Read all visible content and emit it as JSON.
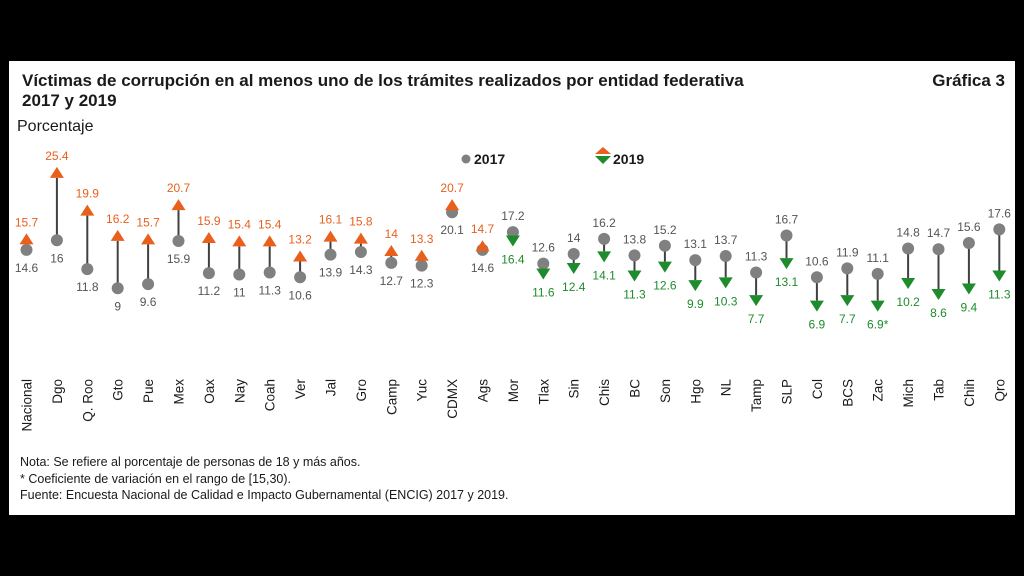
{
  "header": {
    "title_line1": "Víctimas de corrupción en al menos uno de los trámites realizados por entidad federativa",
    "title_line2": "2017 y 2019",
    "figure_label": "Gráfica 3",
    "unit": "Porcentaje"
  },
  "legend": {
    "s2017": "2017",
    "s2019": "2019"
  },
  "colors": {
    "gray": "#808080",
    "orange": "#E8601C",
    "green": "#1E8C2D",
    "connector": "#404040"
  },
  "chart_data": {
    "type": "dumbbell",
    "title": "Víctimas de corrupción en al menos uno de los trámites realizados por entidad federativa 2017 y 2019",
    "ylabel": "Porcentaje",
    "ylim": [
      5,
      26
    ],
    "grid": false,
    "legend_position": "top-center",
    "categories": [
      "Nacional",
      "Dgo",
      "Q. Roo",
      "Gto",
      "Pue",
      "Mex",
      "Oax",
      "Nay",
      "Coah",
      "Ver",
      "Jal",
      "Gro",
      "Camp",
      "Yuc",
      "CDMX",
      "Ags",
      "Mor",
      "Tlax",
      "Sin",
      "Chis",
      "BC",
      "Son",
      "Hgo",
      "NL",
      "Tamp",
      "SLP",
      "Col",
      "BCS",
      "Zac",
      "Mich",
      "Tab",
      "Chih",
      "Qro"
    ],
    "series": [
      {
        "name": "2017",
        "values": [
          14.6,
          16,
          11.8,
          9,
          9.6,
          15.9,
          11.2,
          11,
          11.3,
          10.6,
          13.9,
          14.3,
          12.7,
          12.3,
          20.1,
          14.6,
          17.2,
          12.6,
          14,
          16.2,
          13.8,
          15.2,
          13.1,
          13.7,
          11.3,
          16.7,
          10.6,
          11.9,
          11.1,
          14.8,
          14.7,
          15.6,
          17.6
        ]
      },
      {
        "name": "2019",
        "values": [
          15.7,
          25.4,
          19.9,
          16.2,
          15.7,
          20.7,
          15.9,
          15.4,
          15.4,
          13.2,
          16.1,
          15.8,
          14,
          13.3,
          20.7,
          14.7,
          16.4,
          11.6,
          12.4,
          14.1,
          11.3,
          12.6,
          9.9,
          10.3,
          7.7,
          13.1,
          6.9,
          7.7,
          6.9,
          10.2,
          8.6,
          9.4,
          11.3
        ]
      }
    ],
    "labels_2017": [
      "14.6",
      "16",
      "11.8",
      "9",
      "9.6",
      "15.9",
      "11.2",
      "11",
      "11.3",
      "10.6",
      "13.9",
      "14.3",
      "12.7",
      "12.3",
      "20.1",
      "14.6",
      "17.2",
      "12.6",
      "14",
      "16.2",
      "13.8",
      "15.2",
      "13.1",
      "13.7",
      "11.3",
      "16.7",
      "10.6",
      "11.9",
      "11.1",
      "14.8",
      "14.7",
      "15.6",
      "17.6"
    ],
    "labels_2019": [
      "15.7",
      "25.4",
      "19.9",
      "16.2",
      "15.7",
      "20.7",
      "15.9",
      "15.4",
      "15.4",
      "13.2",
      "16.1",
      "15.8",
      "14",
      "13.3",
      "20.7",
      "14.7",
      "16.4",
      "11.6",
      "12.4",
      "14.1",
      "11.3",
      "12.6",
      "9.9",
      "10.3",
      "7.7",
      "13.1",
      "6.9",
      "7.7",
      "6.9*",
      "10.2",
      "8.6",
      "9.4",
      "11.3"
    ]
  },
  "notes": {
    "line1": "Nota: Se refiere al porcentaje de personas de 18 y más años.",
    "line2": "* Coeficiente de variación en el rango de [15,30).",
    "line3": "Fuente: Encuesta Nacional de Calidad e Impacto Gubernamental (ENCIG) 2017 y 2019."
  }
}
